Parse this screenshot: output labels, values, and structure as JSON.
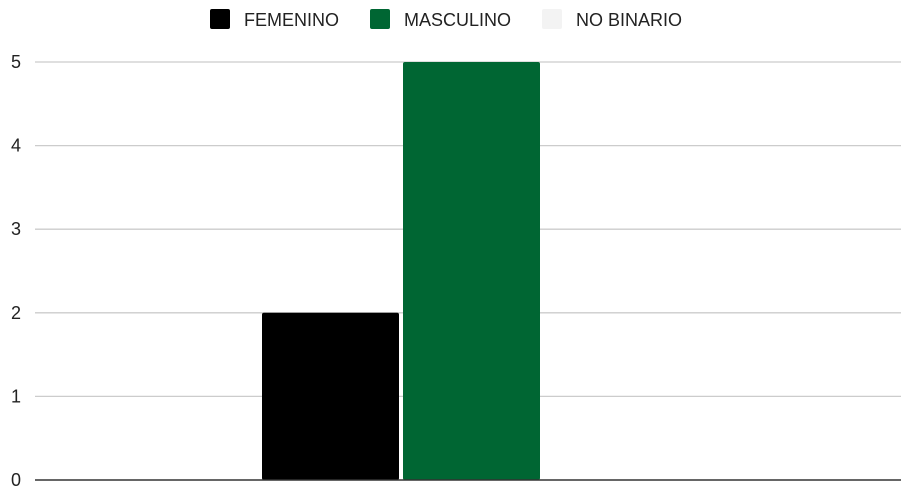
{
  "chart_data": {
    "type": "bar",
    "categories": [
      ""
    ],
    "series": [
      {
        "name": "FEMENINO",
        "values": [
          2
        ],
        "color": "#000000"
      },
      {
        "name": "MASCULINO",
        "values": [
          5
        ],
        "color": "#006633"
      },
      {
        "name": "NO BINARIO",
        "values": [
          0
        ],
        "color": "#f3f3f3"
      }
    ],
    "title": "",
    "xlabel": "",
    "ylabel": "",
    "ylim": [
      0,
      5
    ],
    "yticks": [
      "0",
      "1",
      "2",
      "3",
      "4",
      "5"
    ],
    "grid": true,
    "legend_position": "top-center"
  },
  "colors": {
    "gridline": "#cccccc",
    "axis": "#333333"
  }
}
